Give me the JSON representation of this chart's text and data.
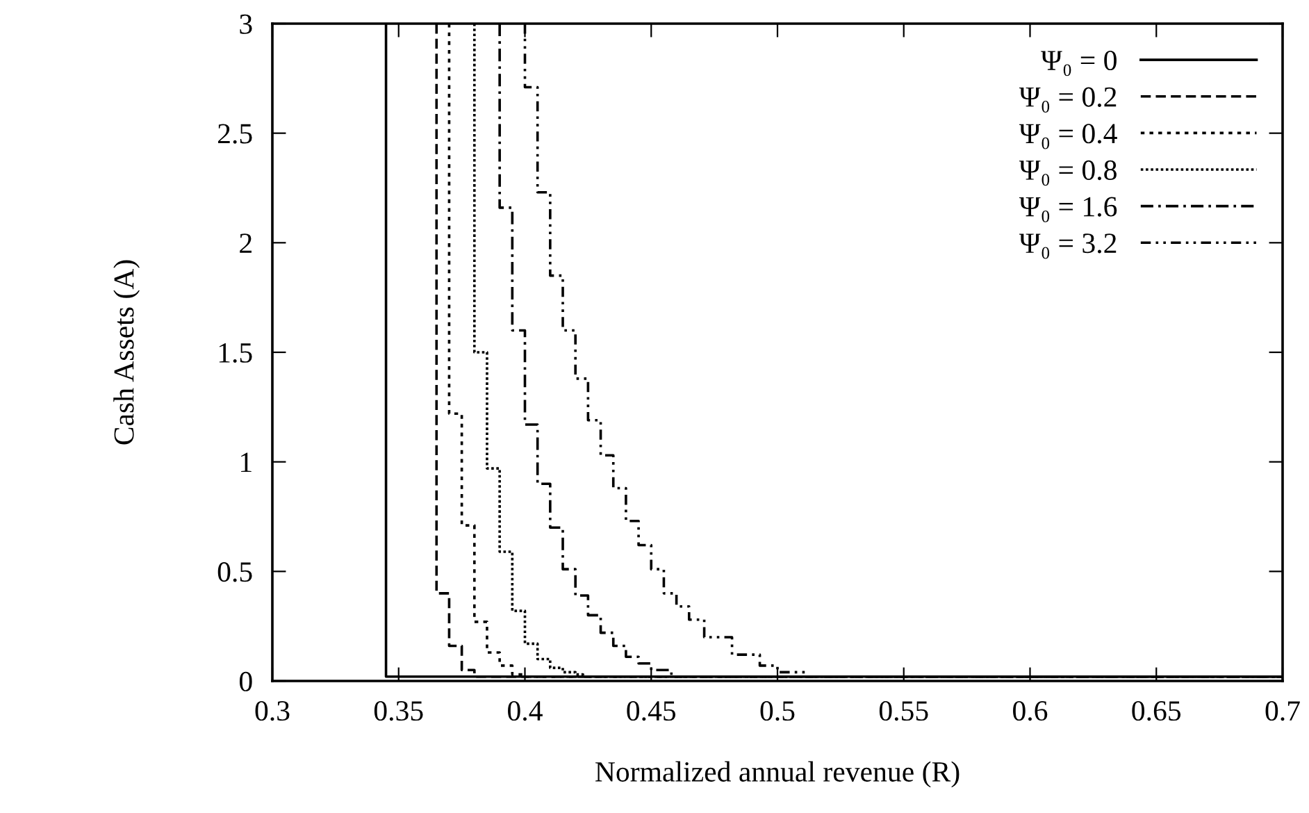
{
  "chart_data": {
    "type": "step",
    "xlabel": "Normalized annual revenue (R)",
    "ylabel": "Cash Assets (A)",
    "xlim": [
      0.3,
      0.7
    ],
    "ylim": [
      0,
      3
    ],
    "xticks": [
      0.3,
      0.35,
      0.4,
      0.45,
      0.5,
      0.55,
      0.6,
      0.65,
      0.7
    ],
    "yticks": [
      0,
      0.5,
      1,
      1.5,
      2,
      2.5,
      3
    ],
    "grid": false,
    "legend": "top right",
    "marker": "none",
    "series": [
      {
        "name": "Ψ₀ = 0",
        "color": "#000000",
        "line_style": "solid",
        "x": [
          0.345,
          0.7
        ],
        "values": [
          3,
          0.02
        ]
      },
      {
        "name": "Ψ₀ = 0.2",
        "color": "#000000",
        "line_style": "dashed",
        "x": [
          0.365,
          0.37,
          0.375,
          0.38,
          0.7
        ],
        "values": [
          3,
          0.4,
          0.16,
          0.05,
          0.02
        ]
      },
      {
        "name": "Ψ₀ = 0.4",
        "color": "#000000",
        "line_style": "dotted",
        "x": [
          0.37,
          0.375,
          0.38,
          0.385,
          0.39,
          0.395,
          0.4,
          0.7
        ],
        "values": [
          3,
          1.22,
          0.71,
          0.27,
          0.13,
          0.07,
          0.03,
          0.02
        ]
      },
      {
        "name": "Ψ₀ = 0.8",
        "color": "#000000",
        "line_style": "densely dotted",
        "x": [
          0.38,
          0.385,
          0.39,
          0.395,
          0.4,
          0.405,
          0.41,
          0.415,
          0.42,
          0.423,
          0.7
        ],
        "values": [
          3,
          1.5,
          0.97,
          0.59,
          0.32,
          0.17,
          0.1,
          0.06,
          0.04,
          0.03,
          0.02
        ]
      },
      {
        "name": "Ψ₀ = 1.6",
        "color": "#000000",
        "line_style": "dashdot",
        "x": [
          0.39,
          0.395,
          0.4,
          0.405,
          0.41,
          0.415,
          0.42,
          0.425,
          0.43,
          0.435,
          0.44,
          0.445,
          0.45,
          0.458,
          0.7
        ],
        "values": [
          3,
          2.16,
          1.6,
          1.17,
          0.9,
          0.7,
          0.51,
          0.39,
          0.3,
          0.22,
          0.16,
          0.11,
          0.08,
          0.05,
          0.02
        ]
      },
      {
        "name": "Ψ₀ = 3.2",
        "color": "#000000",
        "line_style": "dashdotdot",
        "x": [
          0.4,
          0.405,
          0.41,
          0.415,
          0.42,
          0.425,
          0.43,
          0.435,
          0.44,
          0.445,
          0.45,
          0.455,
          0.46,
          0.465,
          0.471,
          0.482,
          0.493,
          0.5,
          0.511,
          0.7
        ],
        "values": [
          3,
          2.71,
          2.23,
          1.85,
          1.6,
          1.38,
          1.19,
          1.03,
          0.88,
          0.73,
          0.62,
          0.51,
          0.4,
          0.34,
          0.28,
          0.2,
          0.12,
          0.07,
          0.04,
          0.02
        ]
      }
    ]
  }
}
